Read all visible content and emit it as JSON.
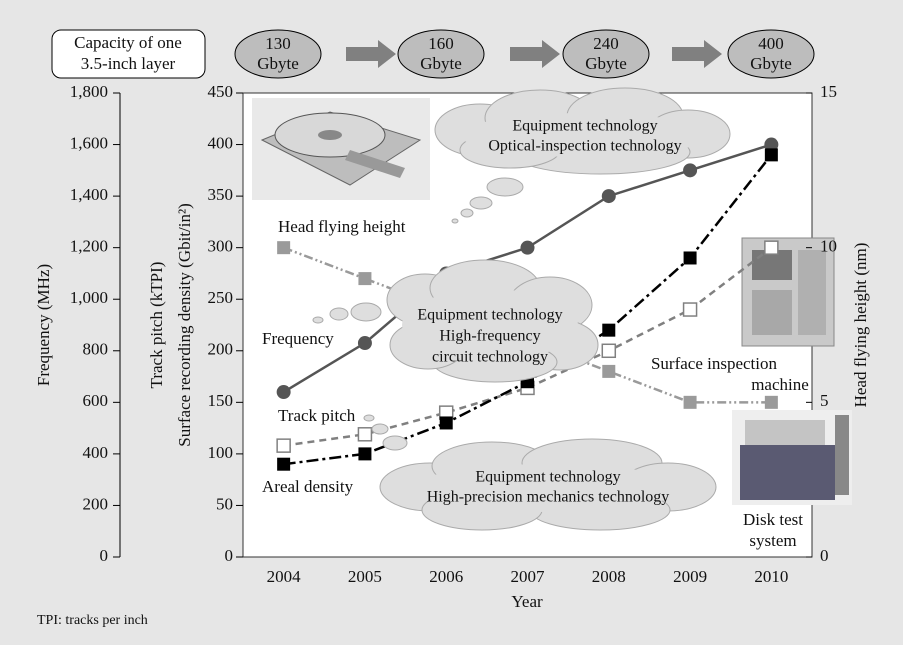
{
  "chart_data": {
    "type": "line",
    "capacity_label": [
      "Capacity of one",
      "3.5-inch layer"
    ],
    "capacities": [
      {
        "number": "130",
        "unit": "Gbyte"
      },
      {
        "number": "160",
        "unit": "Gbyte"
      },
      {
        "number": "240",
        "unit": "Gbyte"
      },
      {
        "number": "400",
        "unit": "Gbyte"
      }
    ],
    "categories": [
      "2004",
      "2005",
      "2006",
      "2007",
      "2008",
      "2009",
      "2010"
    ],
    "xlabel": "Year",
    "ylabel": [
      "Track pitch (kTPI)",
      "Surface recording density (Gbit/in²)"
    ],
    "ylim": [
      0,
      450
    ],
    "yticks": [
      0,
      50,
      100,
      150,
      200,
      250,
      300,
      350,
      400,
      450
    ],
    "y2label": "Head flying height (nm)",
    "y2lim": [
      0,
      15
    ],
    "y2ticks": [
      0,
      5,
      10,
      15
    ],
    "y3label": "Frequency (MHz)",
    "y3lim": [
      0,
      1800
    ],
    "y3ticks": [
      0,
      200,
      400,
      600,
      800,
      {
        "value": 1000,
        "label": "1,000"
      },
      {
        "value": 1200,
        "label": "1,200"
      },
      {
        "value": 1400,
        "label": "1,400"
      },
      {
        "value": 1600,
        "label": "1,600"
      },
      {
        "value": 1800,
        "label": "1,800"
      }
    ],
    "series": [
      {
        "name": "Frequency",
        "color": "#555555",
        "marker": "circle",
        "dash": "none",
        "axis": "y3",
        "values": [
          640,
          830,
          1100,
          1200,
          1400,
          1500,
          1600
        ]
      },
      {
        "name": "Track pitch",
        "color": "#808080",
        "marker": "open-square",
        "dash": "7,5",
        "axis": "y",
        "values": [
          108,
          119,
          140,
          164,
          200,
          240,
          300
        ]
      },
      {
        "name": "Areal density",
        "color": "#000000",
        "marker": "square",
        "dash": "12,4,3,4",
        "axis": "y",
        "values": [
          90,
          100,
          130,
          170,
          220,
          290,
          390
        ]
      },
      {
        "name": "Head flying height",
        "color": "#9a9a9a",
        "marker": "square",
        "dash": "9,3,2,3,2,3",
        "axis": "y2",
        "values": [
          10,
          9,
          8,
          7,
          6,
          5,
          5
        ]
      }
    ],
    "annotations": [
      [
        "Equipment technology",
        "Optical-inspection technology"
      ],
      [
        "Equipment technology",
        "High-frequency",
        "circuit technology"
      ],
      [
        "Equipment technology",
        "High-precision mechanics technology"
      ]
    ],
    "captions": [
      [
        "Surface inspection",
        "machine"
      ],
      [
        "Disk test",
        "system"
      ]
    ],
    "footnote": "TPI: tracks per inch"
  }
}
